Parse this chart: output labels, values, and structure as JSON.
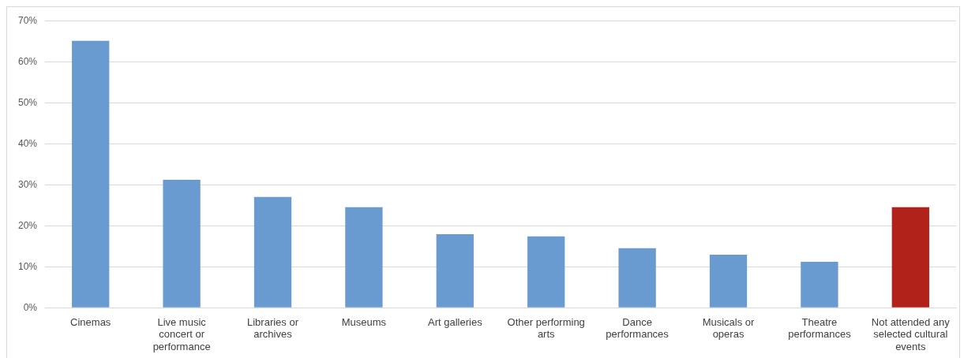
{
  "chart_data": {
    "type": "bar",
    "categories": [
      "Cinemas",
      "Live music concert or performance",
      "Libraries or archives",
      "Museums",
      "Art galleries",
      "Other performing arts",
      "Dance performances",
      "Musicals or operas",
      "Theatre performances",
      "Not attended any selected cultural events"
    ],
    "values": [
      65.1,
      31.2,
      27.0,
      24.5,
      17.9,
      17.4,
      14.5,
      12.9,
      11.2,
      24.5
    ],
    "colors": [
      "#6a9bd0",
      "#6a9bd0",
      "#6a9bd0",
      "#6a9bd0",
      "#6a9bd0",
      "#6a9bd0",
      "#6a9bd0",
      "#6a9bd0",
      "#6a9bd0",
      "#b0221a"
    ],
    "ylim": [
      0,
      70
    ],
    "yticks": [
      {
        "value": 0,
        "label": "0%"
      },
      {
        "value": 10,
        "label": "10%"
      },
      {
        "value": 20,
        "label": "20%"
      },
      {
        "value": 30,
        "label": "30%"
      },
      {
        "value": 40,
        "label": "40%"
      },
      {
        "value": 50,
        "label": "50%"
      },
      {
        "value": 60,
        "label": "60%"
      },
      {
        "value": 70,
        "label": "70%"
      }
    ],
    "grid": "y",
    "legend": false
  }
}
